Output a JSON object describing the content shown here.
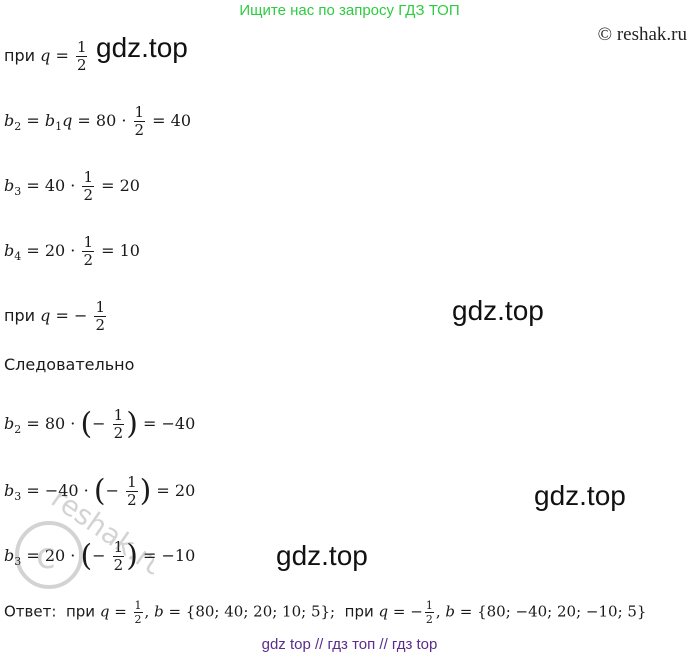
{
  "banner": "Ищите нас по запросу ГДЗ ТОП",
  "copyright": "© reshak.ru",
  "watermark_text": "gdz.top",
  "stamp_text": "reshak.ru",
  "lines": {
    "l1_prefix": "при",
    "l2": "b₂ = b₁q = 80 · ½ = 40",
    "l3": "b₃ = 40 · ½ = 20",
    "l4": "b₄ = 20 · ½ = 10",
    "l5_prefix": "при",
    "sledovatelno": "Следовательно",
    "answer_label": "Ответ:",
    "answer_prefix": "при"
  },
  "bottom": "gdz top  //  гдз топ  //  гдз top"
}
